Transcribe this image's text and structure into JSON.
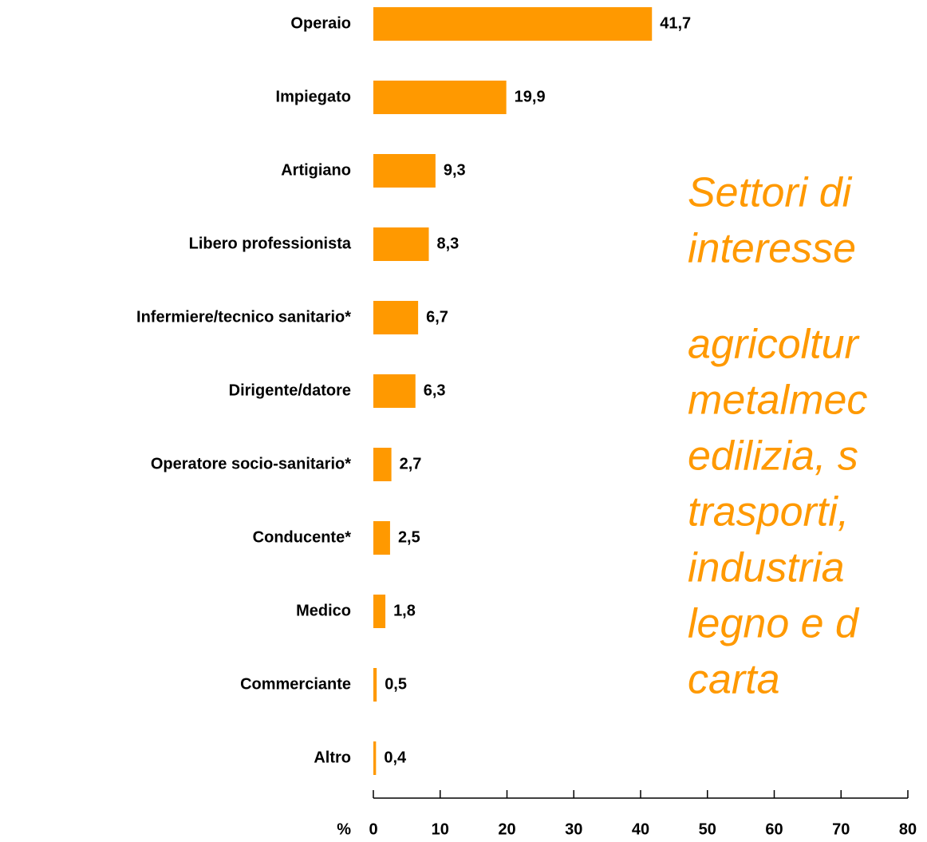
{
  "chart_data": {
    "type": "bar",
    "orientation": "horizontal",
    "categories": [
      "Operaio",
      "Impiegato",
      "Artigiano",
      "Libero professionista",
      "Infermiere/tecnico sanitario*",
      "Dirigente/datore",
      "Operatore socio-sanitario*",
      "Conducente*",
      "Medico",
      "Commerciante",
      "Altro"
    ],
    "values": [
      41.7,
      19.9,
      9.3,
      8.3,
      6.7,
      6.3,
      2.7,
      2.5,
      1.8,
      0.5,
      0.4
    ],
    "value_labels": [
      "41,7",
      "19,9",
      "9,3",
      "8,3",
      "6,7",
      "6,3",
      "2,7",
      "2,5",
      "1,8",
      "0,5",
      "0,4"
    ],
    "color": "#FF9900",
    "xlabel": "%",
    "xlim": [
      0,
      80
    ],
    "xticks": [
      0,
      10,
      20,
      30,
      40,
      50,
      60,
      70,
      80
    ],
    "grid": false,
    "annotation": [
      "Settori di",
      "interesse",
      "agricoltur",
      "metalmec",
      "edilizia, s",
      "trasporti,",
      "industria",
      "legno e d",
      "carta"
    ],
    "annotation_color": "#FF9900"
  }
}
